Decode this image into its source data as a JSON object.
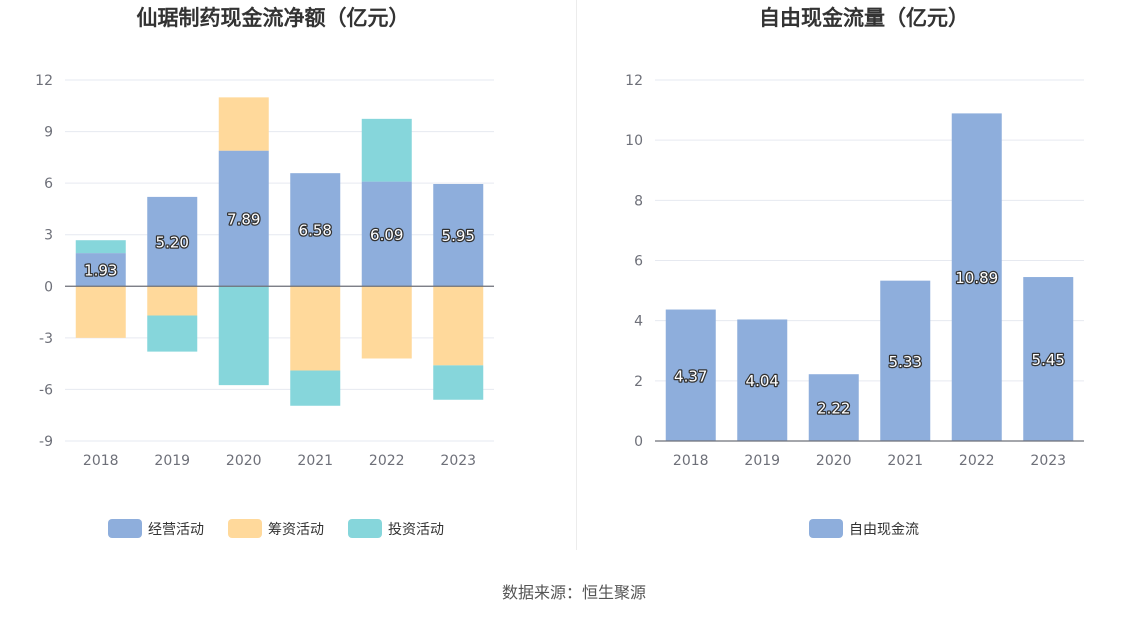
{
  "chart_data": [
    {
      "type": "bar",
      "stacked": true,
      "title": "仙琚制药现金流净额（亿元）",
      "categories": [
        "2018",
        "2019",
        "2020",
        "2021",
        "2022",
        "2023"
      ],
      "ylim": [
        -9,
        12
      ],
      "yticks": [
        12,
        9,
        6,
        3,
        0,
        -3,
        -6,
        -9
      ],
      "grid": true,
      "legend_position": "bottom",
      "series": [
        {
          "name": "经营活动",
          "color": "#8eaedc",
          "values": [
            1.93,
            5.2,
            7.89,
            6.58,
            6.09,
            5.95
          ],
          "labels": [
            "1.93",
            "5.20",
            "7.89",
            "6.58",
            "6.09",
            "5.95"
          ]
        },
        {
          "name": "筹资活动",
          "color": "#ffd99b",
          "values": [
            -3.0,
            -1.7,
            3.1,
            -4.9,
            -4.2,
            -4.6
          ]
        },
        {
          "name": "投资活动",
          "color": "#86d6db",
          "values": [
            0.75,
            -2.1,
            -5.75,
            -2.05,
            3.65,
            -2.0
          ]
        }
      ]
    },
    {
      "type": "bar",
      "title": "自由现金流量（亿元）",
      "categories": [
        "2018",
        "2019",
        "2020",
        "2021",
        "2022",
        "2023"
      ],
      "ylim": [
        0,
        12
      ],
      "yticks": [
        12,
        10,
        8,
        6,
        4,
        2,
        0
      ],
      "grid": true,
      "legend_position": "bottom",
      "series": [
        {
          "name": "自由现金流",
          "color": "#8eaedc",
          "values": [
            4.37,
            4.04,
            2.22,
            5.33,
            10.89,
            5.45
          ],
          "labels": [
            "4.37",
            "4.04",
            "2.22",
            "5.33",
            "10.89",
            "5.45"
          ]
        }
      ]
    }
  ],
  "source_text": "数据来源：恒生聚源"
}
